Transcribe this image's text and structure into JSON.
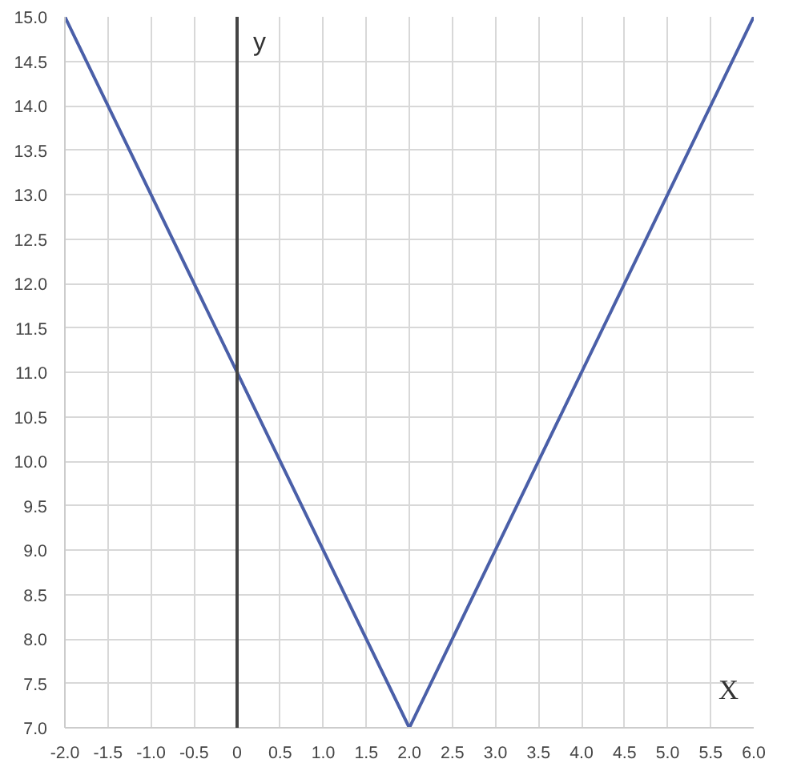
{
  "chart_data": {
    "type": "line",
    "xlabel": "X",
    "ylabel": "y",
    "x": [
      -2,
      2,
      6
    ],
    "series": [
      {
        "color": "#4a5fa8",
        "values": [
          15,
          7,
          15
        ]
      }
    ],
    "xlim": [
      -2,
      6
    ],
    "ylim": [
      7,
      15
    ],
    "xticks": [
      {
        "value": -2,
        "label": "-2.0"
      },
      {
        "value": -1.5,
        "label": "-1.5"
      },
      {
        "value": -1,
        "label": "-1.0"
      },
      {
        "value": -0.5,
        "label": "-0.5"
      },
      {
        "value": 0,
        "label": "0"
      },
      {
        "value": 0.5,
        "label": "0.5"
      },
      {
        "value": 1,
        "label": "1.0"
      },
      {
        "value": 1.5,
        "label": "1.5"
      },
      {
        "value": 2,
        "label": "2.0"
      },
      {
        "value": 2.5,
        "label": "2.5"
      },
      {
        "value": 3,
        "label": "3.0"
      },
      {
        "value": 3.5,
        "label": "3.5"
      },
      {
        "value": 4,
        "label": "4.0"
      },
      {
        "value": 4.5,
        "label": "4.5"
      },
      {
        "value": 5,
        "label": "5.0"
      },
      {
        "value": 5.5,
        "label": "5.5"
      },
      {
        "value": 6,
        "label": "6.0"
      }
    ],
    "yticks": [
      {
        "value": 7,
        "label": "7.0"
      },
      {
        "value": 7.5,
        "label": "7.5"
      },
      {
        "value": 8,
        "label": "8.0"
      },
      {
        "value": 8.5,
        "label": "8.5"
      },
      {
        "value": 9,
        "label": "9.0"
      },
      {
        "value": 9.5,
        "label": "9.5"
      },
      {
        "value": 10,
        "label": "10.0"
      },
      {
        "value": 10.5,
        "label": "10.5"
      },
      {
        "value": 11,
        "label": "11.0"
      },
      {
        "value": 11.5,
        "label": "11.5"
      },
      {
        "value": 12,
        "label": "12.0"
      },
      {
        "value": 12.5,
        "label": "12.5"
      },
      {
        "value": 13,
        "label": "13.0"
      },
      {
        "value": 13.5,
        "label": "13.5"
      },
      {
        "value": 14,
        "label": "14.0"
      },
      {
        "value": 14.5,
        "label": "14.5"
      },
      {
        "value": 15,
        "label": "15.0"
      }
    ],
    "ref_lines": [
      {
        "axis": "x",
        "value": 0,
        "color": "#444444"
      }
    ],
    "grid": true,
    "marker": "none",
    "line_style": "solid"
  }
}
